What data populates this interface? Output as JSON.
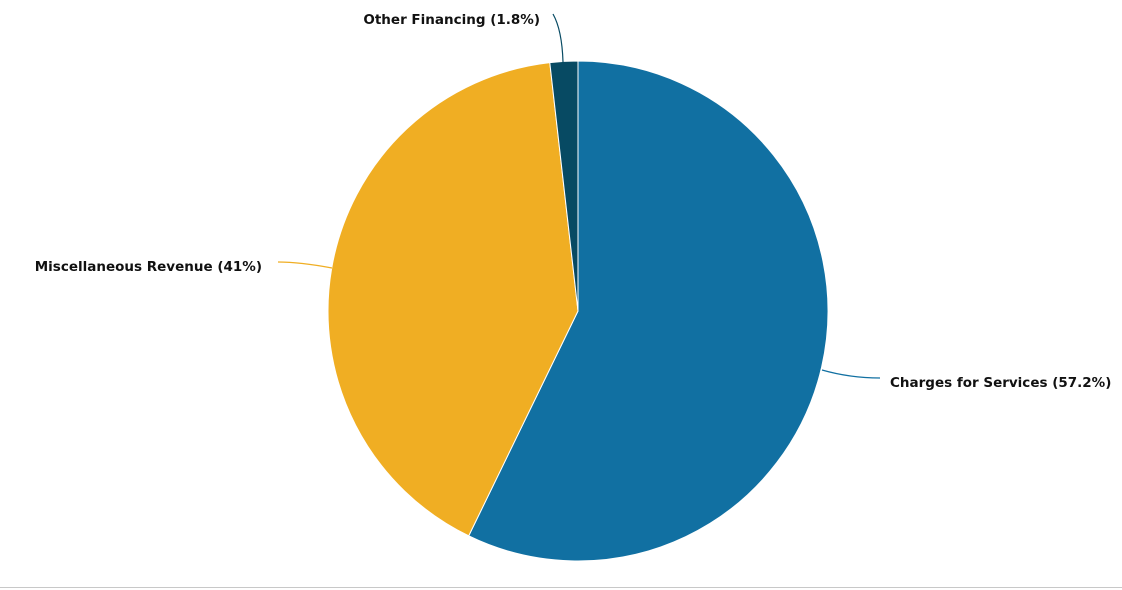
{
  "chart_data": {
    "type": "pie",
    "title": "",
    "start_angle_deg": 0,
    "direction": "clockwise",
    "legend": "none",
    "slices": [
      {
        "label": "Charges for Services (57.2%)",
        "value": 57.2,
        "color": "#1170a2",
        "leader_color": "#1170a2"
      },
      {
        "label": "Miscellaneous Revenue (41%)",
        "value": 41.0,
        "color": "#f0ae23",
        "leader_color": "#f0ae23"
      },
      {
        "label": "Other Financing (1.8%)",
        "value": 1.8,
        "color": "#074a63",
        "leader_color": "#074a63"
      }
    ]
  }
}
